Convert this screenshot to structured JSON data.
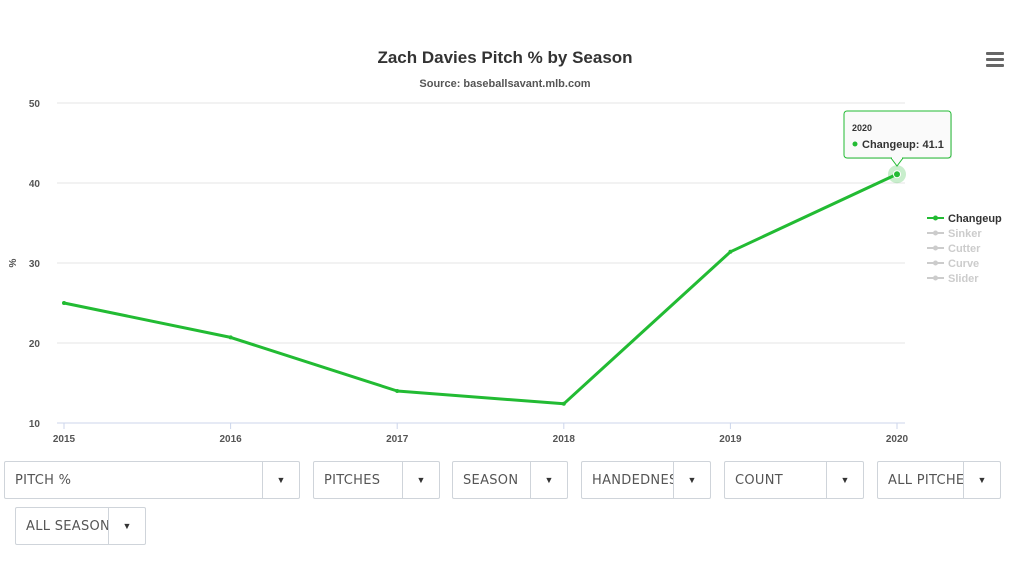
{
  "chart_data": {
    "type": "line",
    "title": "Zach Davies Pitch % by Season",
    "subtitle": "Source: baseballsavant.mlb.com",
    "ylabel": "%",
    "ylim": [
      10,
      50
    ],
    "yticks": [
      10,
      20,
      30,
      40,
      50
    ],
    "x": [
      "2015",
      "2016",
      "2017",
      "2018",
      "2019",
      "2020"
    ],
    "series": [
      {
        "name": "Changeup",
        "values": [
          25.0,
          20.7,
          14.0,
          12.4,
          31.4,
          41.1
        ],
        "color": "#22bb33",
        "visible": true
      },
      {
        "name": "Sinker",
        "visible": false,
        "color": "#cccccc"
      },
      {
        "name": "Cutter",
        "visible": false,
        "color": "#cccccc"
      },
      {
        "name": "Curve",
        "visible": false,
        "color": "#cccccc"
      },
      {
        "name": "Slider",
        "visible": false,
        "color": "#cccccc"
      }
    ],
    "legend": "right",
    "grid": true,
    "tooltip": {
      "x": "2020",
      "series": "Changeup",
      "value": "41.1",
      "text": "Changeup: 41.1"
    }
  },
  "controls": {
    "row1": [
      {
        "label": "PITCH %"
      },
      {
        "label": "PITCHES"
      },
      {
        "label": "SEASON"
      },
      {
        "label": "HANDEDNESS"
      },
      {
        "label": "COUNT"
      },
      {
        "label": "ALL PITCHES"
      }
    ],
    "row2": [
      {
        "label": "ALL SEASONS"
      }
    ],
    "arrow_glyph": "▼"
  },
  "colors": {
    "grid": "#e6e6e6",
    "axis": "#ccd6eb",
    "inactive": "#cccccc",
    "accent": "#22bb33"
  }
}
